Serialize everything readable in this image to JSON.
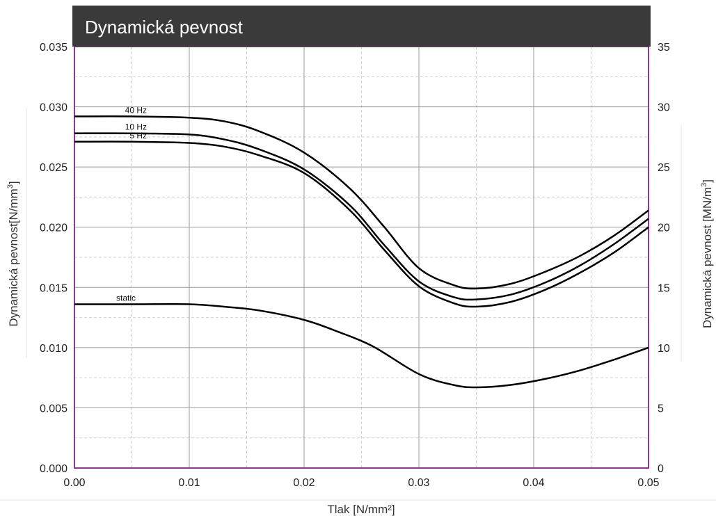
{
  "chart_data": {
    "type": "line",
    "title": "Dynamická pevnost",
    "xlabel": "Tlak [N/mm²]",
    "ylabel_left_main": "Dynamická pevnost[N/mm",
    "ylabel_left_sup": "3",
    "ylabel_left_end": "]",
    "ylabel_right_main": "Dynamická pevnost [MN/m",
    "ylabel_right_sup": "3",
    "ylabel_right_end": "]",
    "xlim": [
      0,
      0.05
    ],
    "ylim": [
      0,
      0.035
    ],
    "ylim_right": [
      0,
      35
    ],
    "x_ticks": [
      "0.00",
      "0.01",
      "0.02",
      "0.03",
      "0.04",
      "0.05"
    ],
    "y_ticks_left": [
      "0.000",
      "0.005",
      "0.010",
      "0.015",
      "0.020",
      "0.025",
      "0.030",
      "0.035"
    ],
    "y_ticks_right": [
      "0",
      "5",
      "10",
      "15",
      "20",
      "25",
      "30",
      "35"
    ],
    "grid": true,
    "series": [
      {
        "name": "40 Hz",
        "x": [
          0,
          0.005,
          0.01,
          0.013,
          0.016,
          0.02,
          0.024,
          0.027,
          0.03,
          0.033,
          0.035,
          0.038,
          0.041,
          0.044,
          0.047,
          0.05
        ],
        "y": [
          0.0292,
          0.0292,
          0.0291,
          0.0288,
          0.028,
          0.0262,
          0.0232,
          0.02,
          0.0166,
          0.0152,
          0.0149,
          0.0153,
          0.0163,
          0.0176,
          0.0193,
          0.0214
        ]
      },
      {
        "name": "10 Hz",
        "x": [
          0,
          0.005,
          0.01,
          0.013,
          0.016,
          0.02,
          0.024,
          0.027,
          0.03,
          0.033,
          0.035,
          0.038,
          0.041,
          0.044,
          0.047,
          0.05
        ],
        "y": [
          0.0278,
          0.0278,
          0.0277,
          0.0273,
          0.0265,
          0.0248,
          0.0218,
          0.0185,
          0.0155,
          0.0142,
          0.014,
          0.0144,
          0.0154,
          0.0168,
          0.0186,
          0.0207
        ]
      },
      {
        "name": "5 Hz",
        "x": [
          0,
          0.005,
          0.01,
          0.013,
          0.016,
          0.02,
          0.024,
          0.027,
          0.03,
          0.033,
          0.035,
          0.038,
          0.041,
          0.044,
          0.047,
          0.05
        ],
        "y": [
          0.0271,
          0.0271,
          0.027,
          0.0267,
          0.026,
          0.0245,
          0.0214,
          0.0181,
          0.0151,
          0.0137,
          0.0134,
          0.0138,
          0.0148,
          0.0162,
          0.0179,
          0.02
        ]
      },
      {
        "name": "static",
        "x": [
          0,
          0.005,
          0.01,
          0.013,
          0.016,
          0.02,
          0.023,
          0.026,
          0.03,
          0.033,
          0.035,
          0.038,
          0.041,
          0.044,
          0.047,
          0.05
        ],
        "y": [
          0.0136,
          0.0136,
          0.0136,
          0.0134,
          0.0131,
          0.0123,
          0.0113,
          0.0101,
          0.0078,
          0.0069,
          0.0067,
          0.0069,
          0.0074,
          0.0081,
          0.009,
          0.01
        ]
      }
    ]
  },
  "colors": {
    "title_bar": "#3a3a3a",
    "plot_frame": "#8c3a8a",
    "grid_major": "#9a9a9a",
    "grid_minor": "#cfcfcf",
    "curve": "#000000"
  }
}
